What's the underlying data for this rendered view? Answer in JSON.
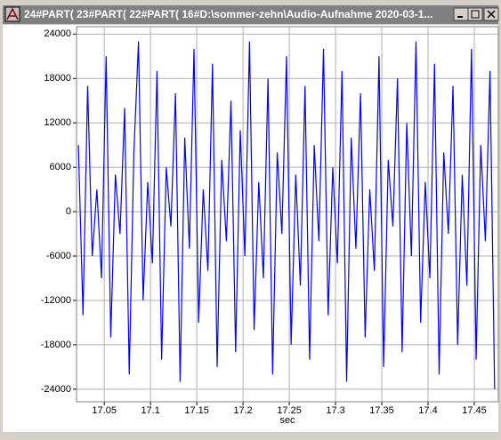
{
  "window": {
    "title": "24#PART( 23#PART( 22#PART( 16#D:\\sommer-zehn\\Audio-Aufnahme 2020-03-1..."
  },
  "chart_data": {
    "type": "line",
    "x_label": "sec",
    "x": [
      17.022,
      17.027,
      17.032,
      17.037,
      17.042,
      17.047,
      17.052,
      17.057,
      17.062,
      17.067,
      17.072,
      17.077,
      17.082,
      17.087,
      17.092,
      17.097,
      17.102,
      17.107,
      17.112,
      17.117,
      17.122,
      17.127,
      17.132,
      17.137,
      17.142,
      17.147,
      17.152,
      17.157,
      17.162,
      17.167,
      17.172,
      17.177,
      17.182,
      17.187,
      17.192,
      17.197,
      17.202,
      17.207,
      17.212,
      17.217,
      17.222,
      17.227,
      17.232,
      17.237,
      17.242,
      17.247,
      17.252,
      17.257,
      17.262,
      17.267,
      17.272,
      17.277,
      17.282,
      17.287,
      17.292,
      17.297,
      17.302,
      17.307,
      17.312,
      17.317,
      17.322,
      17.327,
      17.332,
      17.337,
      17.342,
      17.347,
      17.352,
      17.357,
      17.362,
      17.367,
      17.372,
      17.377,
      17.382,
      17.387,
      17.392,
      17.397,
      17.402,
      17.407,
      17.412,
      17.417,
      17.422,
      17.427,
      17.432,
      17.437,
      17.442,
      17.447,
      17.452,
      17.457,
      17.462,
      17.467,
      17.472
    ],
    "values": [
      9000,
      -14000,
      17000,
      -6000,
      3000,
      -9000,
      21000,
      -17000,
      5000,
      -3000,
      14000,
      -22000,
      8000,
      23000,
      -12000,
      4000,
      -7000,
      19000,
      -20000,
      6000,
      -2000,
      16000,
      -23000,
      10000,
      -5000,
      22000,
      -15000,
      3000,
      -8000,
      20000,
      -21000,
      7000,
      -4000,
      15000,
      -19000,
      11000,
      -6000,
      23000,
      -16000,
      4000,
      -9000,
      18000,
      -22000,
      8000,
      -3000,
      21000,
      -18000,
      5000,
      -10000,
      17000,
      -20000,
      9000,
      -4000,
      22000,
      -14000,
      6000,
      -7000,
      19000,
      -23000,
      10000,
      -5000,
      16000,
      -17000,
      3000,
      -8000,
      21000,
      -21000,
      7000,
      -2000,
      18000,
      -19000,
      12000,
      -6000,
      23000,
      -15000,
      4000,
      -9000,
      20000,
      -22000,
      8000,
      -3000,
      17000,
      -18000,
      5000,
      -10000,
      22000,
      -20000,
      9000,
      -4000,
      19000,
      -24000
    ],
    "color": "#0000ff",
    "xlim": [
      17.02,
      17.476
    ],
    "ylim": [
      -25700,
      25000
    ],
    "xticks": [
      17.05,
      17.1,
      17.15,
      17.2,
      17.25,
      17.3,
      17.35,
      17.4,
      17.45
    ],
    "yticks": [
      24000,
      18000,
      12000,
      6000,
      0,
      -6000,
      -12000,
      -18000,
      -24000
    ],
    "grid": true
  }
}
